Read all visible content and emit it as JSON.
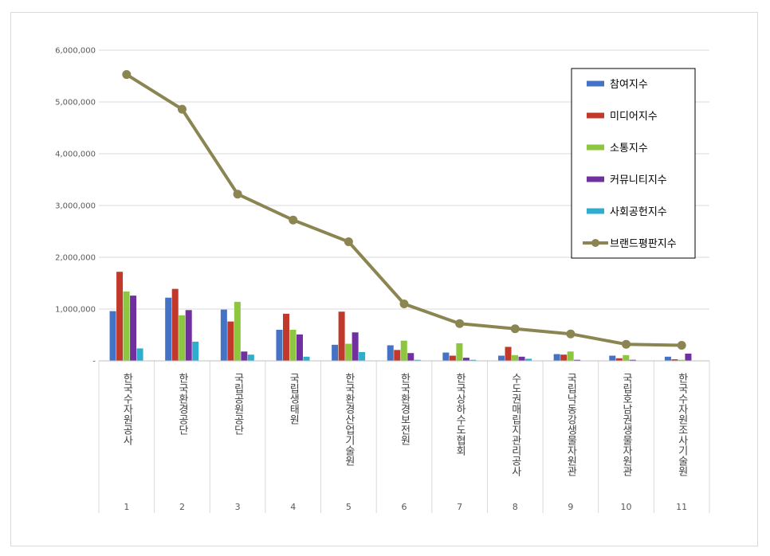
{
  "chart_data": {
    "type": "bar",
    "title": "",
    "xlabel": "",
    "ylabel": "",
    "ylim": [
      0,
      6000000
    ],
    "yticks": [
      0,
      1000000,
      2000000,
      3000000,
      4000000,
      5000000,
      6000000
    ],
    "ytick_labels": [
      "-",
      "1,000,000",
      "2,000,000",
      "3,000,000",
      "4,000,000",
      "5,000,000",
      "6,000,000"
    ],
    "grid": true,
    "legend_position": "top-right",
    "categories": [
      "한국수자원공사",
      "한국환경공단",
      "국립공원공단",
      "국립생태원",
      "한국환경산업기술원",
      "한국환경보전원",
      "한국상하수도협회",
      "수도권매립지관리공사",
      "국립낙동강생물자원관",
      "국립호남권생물자원관",
      "한국수자원조사기술원"
    ],
    "ranks": [
      "1",
      "2",
      "3",
      "4",
      "5",
      "6",
      "7",
      "8",
      "9",
      "10",
      "11"
    ],
    "series": [
      {
        "name": "참여지수",
        "type": "bar",
        "color": "#4472c4",
        "values": [
          960000,
          1220000,
          990000,
          600000,
          310000,
          300000,
          160000,
          100000,
          130000,
          100000,
          80000
        ]
      },
      {
        "name": "미디어지수",
        "type": "bar",
        "color": "#c0392b",
        "values": [
          1720000,
          1390000,
          760000,
          910000,
          950000,
          210000,
          100000,
          270000,
          120000,
          50000,
          30000
        ]
      },
      {
        "name": "소통지수",
        "type": "bar",
        "color": "#8dc63f",
        "values": [
          1340000,
          880000,
          1140000,
          600000,
          330000,
          390000,
          340000,
          110000,
          180000,
          110000,
          20000
        ]
      },
      {
        "name": "커뮤니티지수",
        "type": "bar",
        "color": "#7030a0",
        "values": [
          1260000,
          980000,
          180000,
          510000,
          550000,
          150000,
          60000,
          80000,
          20000,
          20000,
          140000
        ]
      },
      {
        "name": "사회공헌지수",
        "type": "bar",
        "color": "#2eaecc",
        "values": [
          240000,
          370000,
          120000,
          80000,
          170000,
          20000,
          20000,
          40000,
          0,
          0,
          0
        ]
      },
      {
        "name": "브랜드평판지수",
        "type": "line",
        "color": "#8b8552",
        "values": [
          5530000,
          4860000,
          3220000,
          2720000,
          2300000,
          1100000,
          720000,
          620000,
          520000,
          320000,
          300000
        ]
      }
    ]
  }
}
